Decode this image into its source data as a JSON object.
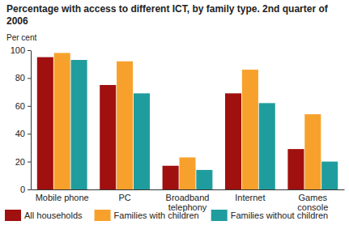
{
  "chart_data": {
    "type": "bar",
    "title": "Percentage with access to different ICT, by family type. 2nd quarter of 2006",
    "y_label": "Per cent",
    "categories": [
      "Mobile phone",
      "PC",
      "Broadband telephony",
      "Internet",
      "Games console"
    ],
    "series": [
      {
        "name": "All households",
        "color": "#a0100f",
        "values": [
          95,
          75,
          17,
          69,
          29
        ]
      },
      {
        "name": "Families with children",
        "color": "#f7a12c",
        "values": [
          98,
          92,
          23,
          86,
          54
        ]
      },
      {
        "name": "Families without children",
        "color": "#1f9d9e",
        "values": [
          93,
          69,
          14,
          62,
          20
        ]
      }
    ],
    "ylim": [
      0,
      100
    ],
    "yticks": [
      0,
      20,
      40,
      60,
      80,
      100
    ],
    "grid": false,
    "legend": "bottom"
  }
}
